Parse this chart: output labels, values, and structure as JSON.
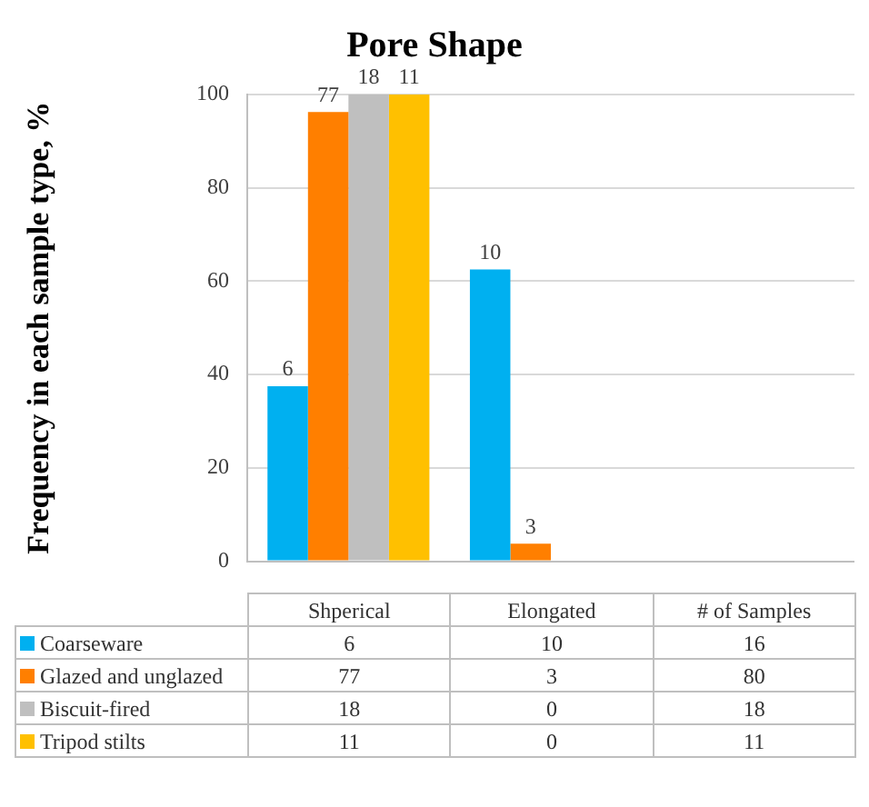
{
  "chart_data": [
    {
      "type": "bar",
      "title": "Pore Shape",
      "ylabel": "Frequency in each sample type, %",
      "categories": [
        "Shperical",
        "Elongated",
        "# of Samples"
      ],
      "series": [
        {
          "color": "#00b0f0",
          "values": [
            37.5,
            62.5,
            null
          ]
        },
        {
          "color": "#ff7f00",
          "values": [
            96.25,
            3.75,
            null
          ]
        },
        {
          "color": "#bfbfbf",
          "values": [
            100,
            0,
            null
          ]
        },
        {
          "color": "#ffc000",
          "values": [
            100,
            0,
            null
          ]
        }
      ],
      "annotations": [
        {
          "text": "6",
          "x": "Shperical",
          "y": 37.5
        },
        {
          "text": "77",
          "x": "Shperical",
          "y": 96.25
        },
        {
          "text": "18",
          "x": "Shperical",
          "y": 100
        },
        {
          "text": "11",
          "x": "Shperical",
          "y": 100
        },
        "10",
        {
          "text": "3",
          "x": "Elongated",
          "y": 3.75
        }
      ],
      "ylim": [
        0,
        100
      ],
      "yticks": [
        0,
        20,
        40,
        60,
        80,
        100
      ],
      "grid": "y",
      "tick_labels": "y"
    },
    {
      "type": "other",
      "categories": [
        "Shperical",
        "Elongated",
        "# of Samples"
      ],
      "series": [
        {
          "name": "Coarseware",
          "color": "#00b0f0",
          "values": [
            6,
            10,
            16
          ]
        },
        {
          "name": "Glazed and unglazed",
          "color": "#ff7f00",
          "values": [
            77,
            3,
            80
          ]
        },
        {
          "name": "Biscuit-fired",
          "color": "#bfbfbf",
          "values": [
            18,
            0,
            18
          ]
        },
        {
          "name": "Tripod stilts",
          "color": "#ffc000",
          "values": [
            11,
            0,
            11
          ]
        }
      ],
      "data_labels": true,
      "legend": "left"
    }
  ]
}
